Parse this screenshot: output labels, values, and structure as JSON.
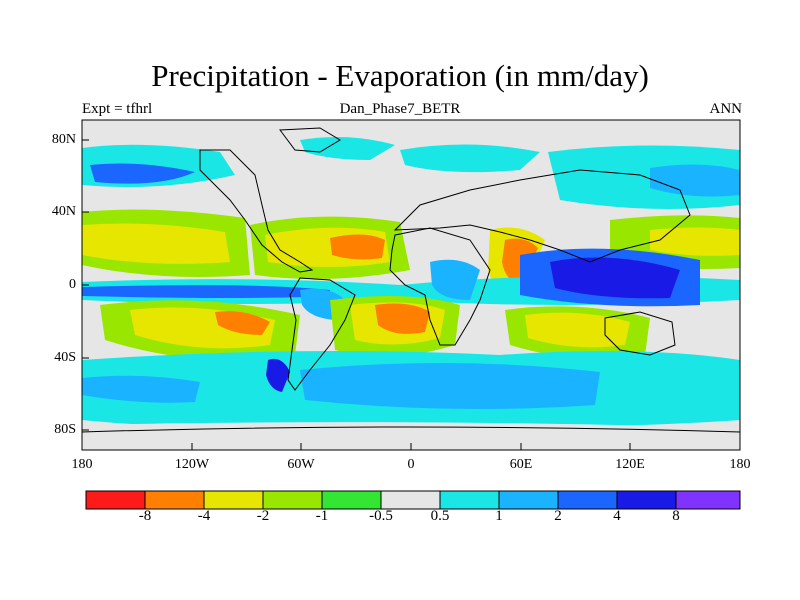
{
  "title": "Precipitation - Evaporation (in mm/day)",
  "left_label": "Expt = tfhrl",
  "center_label": "Dan_Phase7_BETR",
  "right_label": "ANN",
  "map": {
    "x_ticks": [
      "180",
      "120W",
      "60W",
      "0",
      "60E",
      "120E",
      "180"
    ],
    "y_ticks": [
      "80N",
      "40N",
      "0",
      "40S",
      "80S"
    ],
    "lon_range": [
      -180,
      180
    ],
    "lat_range": [
      -90,
      90
    ],
    "background_color": "#e6e6e6",
    "coastline_color": "#000000"
  },
  "colorbar": {
    "colors": [
      "#ff1a1a",
      "#ff8000",
      "#e6e600",
      "#99e600",
      "#33e633",
      "#e6e6e6",
      "#1ae6e6",
      "#1ab3ff",
      "#1a66ff",
      "#1a1ae6",
      "#8033ff"
    ],
    "labels": [
      "-8",
      "-4",
      "-2",
      "-1",
      "-0.5",
      "0.5",
      "1",
      "2",
      "4",
      "8"
    ],
    "boundaries": [
      -8,
      -4,
      -2,
      -1,
      -0.5,
      0.5,
      1,
      2,
      4,
      8
    ]
  }
}
